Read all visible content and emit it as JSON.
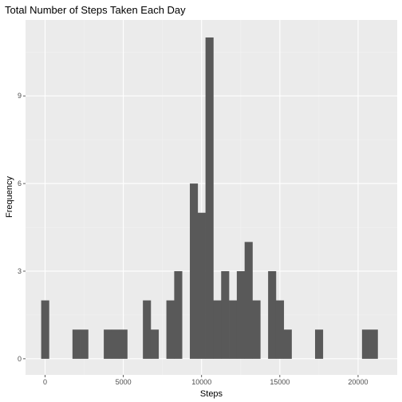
{
  "chart_data": {
    "type": "bar",
    "subtype": "histogram",
    "title": "Total Number of Steps Taken Each Day",
    "xlabel": "Steps",
    "ylabel": "Frequency",
    "bin_width": 500,
    "bins_start": [
      0,
      2000,
      2500,
      4000,
      4500,
      5000,
      6500,
      7000,
      8000,
      8500,
      9500,
      10000,
      10500,
      11000,
      11500,
      12000,
      12500,
      13000,
      13500,
      14500,
      15000,
      15500,
      17500,
      20500,
      21000
    ],
    "counts": [
      2,
      1,
      1,
      1,
      1,
      1,
      2,
      1,
      2,
      3,
      6,
      5,
      11,
      2,
      3,
      2,
      3,
      4,
      2,
      3,
      2,
      1,
      1,
      1,
      1
    ],
    "xlim": [
      -1250,
      22500
    ],
    "ylim": [
      -0.55,
      11.6
    ],
    "xticks": [
      0,
      5000,
      10000,
      15000,
      20000
    ],
    "xtick_labels": [
      "0",
      "5000",
      "10000",
      "15000",
      "20000"
    ],
    "yticks": [
      0,
      3,
      6,
      9
    ],
    "ytick_labels": [
      "0",
      "3",
      "6",
      "9"
    ],
    "grid": true,
    "colors": {
      "bar": "#595959",
      "panel": "#ebebeb",
      "grid_major": "#ffffff",
      "grid_minor": "#f2f2f2",
      "tick": "#333333"
    }
  }
}
